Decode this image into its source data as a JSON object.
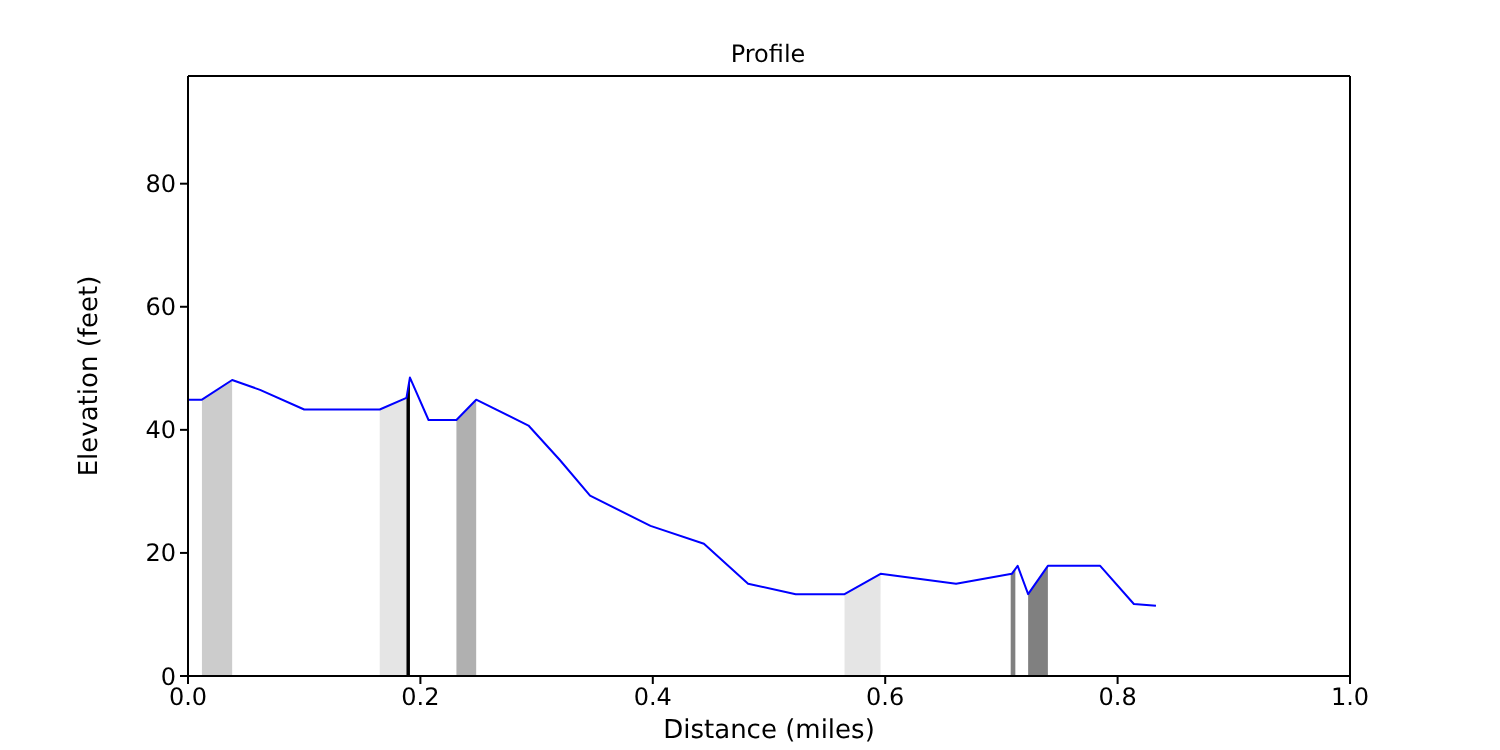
{
  "chart_data": {
    "type": "line",
    "title": "Profile",
    "xlabel": "Distance (miles)",
    "ylabel": "Elevation (feet)",
    "xlim": [
      0,
      1
    ],
    "xticks": [
      {
        "value": 0,
        "label": "0.0"
      },
      0.2,
      0.4,
      0.6,
      0.8,
      {
        "value": 1,
        "label": "1.0"
      }
    ],
    "ylim": [
      0,
      97.5
    ],
    "yticks": [
      0,
      20,
      40,
      60,
      80
    ],
    "grid": false,
    "series": [
      {
        "type": "area",
        "color": "#cccccc",
        "x": [
          0.012,
          0.038
        ],
        "values": [
          44.9,
          48.1
        ]
      },
      {
        "type": "area",
        "color": "#e5e5e5",
        "x": [
          0.165,
          0.188
        ],
        "values": [
          43.3,
          45.2
        ]
      },
      {
        "type": "area",
        "color": "#000000",
        "x": [
          0.188,
          0.191
        ],
        "values": [
          45.2,
          48.5
        ]
      },
      {
        "type": "area",
        "color": "#b0b0b0",
        "x": [
          0.231,
          0.248
        ],
        "values": [
          41.6,
          44.9
        ]
      },
      {
        "type": "area",
        "color": "#e5e5e5",
        "x": [
          0.565,
          0.596
        ],
        "values": [
          13.3,
          16.6
        ]
      },
      {
        "type": "area",
        "color": "#808080",
        "x": [
          0.708,
          0.712
        ],
        "values": [
          16.6,
          17.5
        ]
      },
      {
        "type": "area",
        "color": "#808080",
        "x": [
          0.723,
          0.74
        ],
        "values": [
          13.3,
          17.9
        ]
      },
      {
        "color": "#0000ff",
        "x": [
          0,
          0.012,
          0.038,
          0.062,
          0.1,
          0.165,
          0.188,
          0.191,
          0.207,
          0.231,
          0.248,
          0.293,
          0.32,
          0.346,
          0.398,
          0.444,
          0.482,
          0.523,
          0.565,
          0.596,
          0.661,
          0.709,
          0.714,
          0.723,
          0.74,
          0.785,
          0.814,
          0.833
        ],
        "values": [
          44.9,
          44.9,
          48.1,
          46.5,
          43.3,
          43.3,
          45.2,
          48.5,
          41.6,
          41.6,
          44.9,
          40.7,
          35.1,
          29.3,
          24.4,
          21.5,
          15.0,
          13.3,
          13.3,
          16.6,
          15.0,
          16.6,
          17.9,
          13.3,
          17.9,
          17.9,
          11.7,
          11.4
        ]
      }
    ]
  }
}
